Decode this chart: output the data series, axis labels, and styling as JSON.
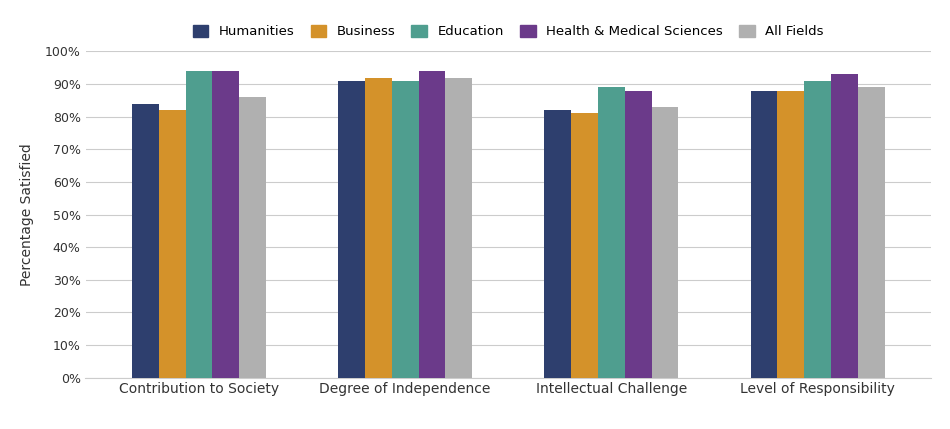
{
  "categories": [
    "Contribution to Society",
    "Degree of Independence",
    "Intellectual Challenge",
    "Level of Responsibility"
  ],
  "series": {
    "Humanities": [
      84,
      91,
      82,
      88
    ],
    "Business": [
      82,
      92,
      81,
      88
    ],
    "Education": [
      94,
      91,
      89,
      91
    ],
    "Health & Medical Sciences": [
      94,
      94,
      88,
      93
    ],
    "All Fields": [
      86,
      92,
      83,
      89
    ]
  },
  "colors": {
    "Humanities": "#2e3f6e",
    "Business": "#d4922a",
    "Education": "#4f9e8f",
    "Health & Medical Sciences": "#6b3a8a",
    "All Fields": "#b0b0b0"
  },
  "ylabel": "Percentage Satisfied",
  "ylim": [
    0,
    100
  ],
  "yticks": [
    0,
    10,
    20,
    30,
    40,
    50,
    60,
    70,
    80,
    90,
    100
  ],
  "ytick_labels": [
    "0%",
    "10%",
    "20%",
    "30%",
    "40%",
    "50%",
    "60%",
    "70%",
    "80%",
    "90%",
    "100%"
  ],
  "background_color": "#ffffff",
  "grid_color": "#cccccc",
  "bar_width": 0.13,
  "figsize": [
    9.5,
    4.29
  ],
  "dpi": 100
}
